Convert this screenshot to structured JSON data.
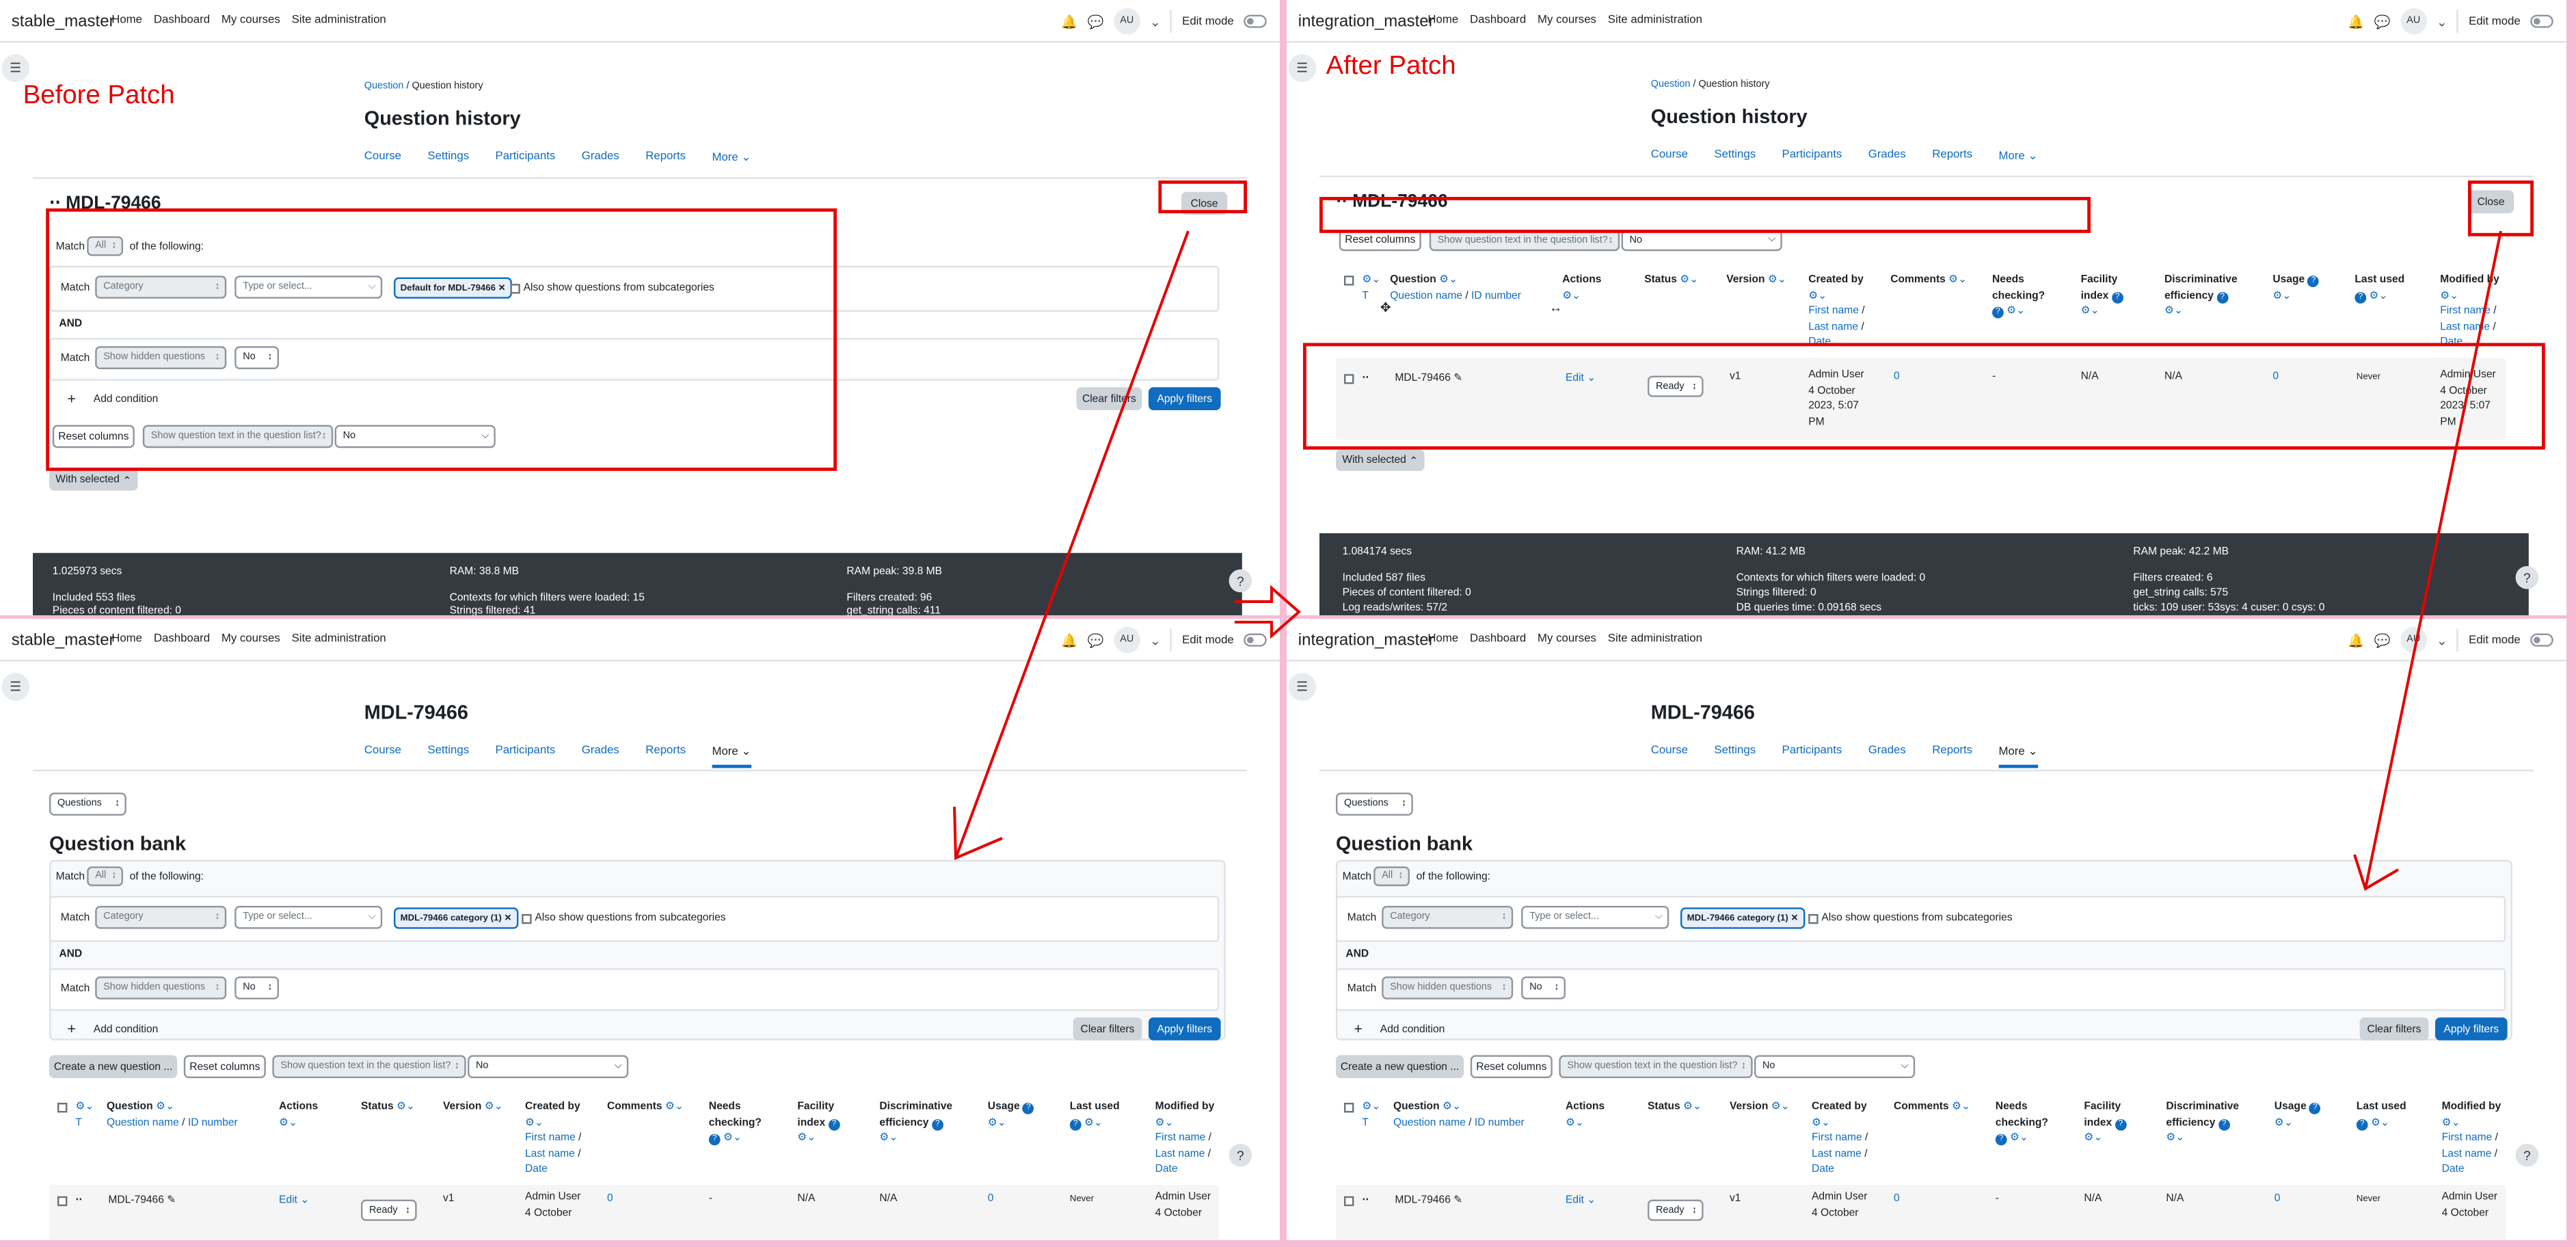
{
  "nav": {
    "left_site": "stable_master",
    "right_site": "integration_master",
    "items": [
      "Home",
      "Dashboard",
      "My courses",
      "Site administration"
    ],
    "avatar": "AU",
    "edit_mode": "Edit mode"
  },
  "annotations": {
    "before": "Before Patch",
    "after": "After Patch"
  },
  "history": {
    "breadcrumb_link": "Question",
    "breadcrumb_sep": "/",
    "breadcrumb_current": "Question history",
    "title": "Question history",
    "category_title": "MDL-79466",
    "close": "Close"
  },
  "course_nav": [
    "Course",
    "Settings",
    "Participants",
    "Grades",
    "Reports",
    "More"
  ],
  "bank": {
    "page_title": "MDL-79466",
    "questions_select": "Questions",
    "title": "Question bank",
    "create_button": "Create a new question ..."
  },
  "filters": {
    "match": "Match",
    "all": "All",
    "of_following": "of the following:",
    "category_placeholder": "Category",
    "type_placeholder": "Type or select...",
    "chip_before": "Default for MDL-79466",
    "chip_bank": "MDL-79466 category (1)",
    "subcategories": "Also show questions from subcategories",
    "and": "AND",
    "hidden": "Show hidden questions",
    "no": "No",
    "add_condition": "Add condition",
    "clear": "Clear filters",
    "apply": "Apply filters"
  },
  "columns_bar": {
    "reset": "Reset columns",
    "show_text": "Show question text in the question list?",
    "no": "No"
  },
  "with_selected": "With selected",
  "table": {
    "headers": {
      "t": "T",
      "question": "Question",
      "qname": "Question name",
      "slash": "/",
      "idnumber": "ID number",
      "actions": "Actions",
      "status": "Status",
      "version": "Version",
      "created_by": "Created by",
      "first_name": "First name",
      "last_name": "Last name",
      "date": "Date",
      "comments": "Comments",
      "needs1": "Needs",
      "needs2": "checking?",
      "facility1": "Facility",
      "facility2": "index",
      "disc1": "Discriminative",
      "disc2": "efficiency",
      "usage": "Usage",
      "last_used": "Last used",
      "modified_by": "Modified by"
    },
    "row": {
      "name": "MDL-79466",
      "edit": "Edit",
      "status": "Ready",
      "version": "v1",
      "created_by": "Admin User",
      "created_date1": "4 October",
      "created_date2": "2023, 5:07",
      "created_date3": "PM",
      "comments": "0",
      "needs": "-",
      "facility": "N/A",
      "disc": "N/A",
      "usage": "0",
      "last_used": "Never",
      "modified_by": "Admin User",
      "modified_date1": "4 October",
      "modified_date2": "2023, 5:07",
      "modified_date3": "PM"
    }
  },
  "perf_left": {
    "time": "1.025973 secs",
    "ram": "RAM: 38.8 MB",
    "ram_peak": "RAM peak: 39.8 MB",
    "files": "Included 553 files",
    "contexts": "Contexts for which filters were loaded: 15",
    "filters_created": "Filters created: 96",
    "pieces": "Pieces of content filtered: 0",
    "strings": "Strings filtered: 41",
    "get_string": "get_string calls: 411"
  },
  "perf_right": {
    "time": "1.084174 secs",
    "ram": "RAM: 41.2 MB",
    "ram_peak": "RAM peak: 42.2 MB",
    "files": "Included 587 files",
    "contexts": "Contexts for which filters were loaded: 0",
    "filters_created": "Filters created: 6",
    "pieces": "Pieces of content filtered: 0",
    "strings": "Strings filtered: 0",
    "get_string": "get_string calls: 575",
    "log": "Log reads/writes: 57/2",
    "db": "DB queries time: 0.09168 secs",
    "ticks": "ticks: 109 user: 53sys: 4 cuser: 0 csys: 0"
  },
  "colors": {
    "accent": "#0f6cbf",
    "annotation": "#e60000",
    "background": "#f6bcd4"
  }
}
